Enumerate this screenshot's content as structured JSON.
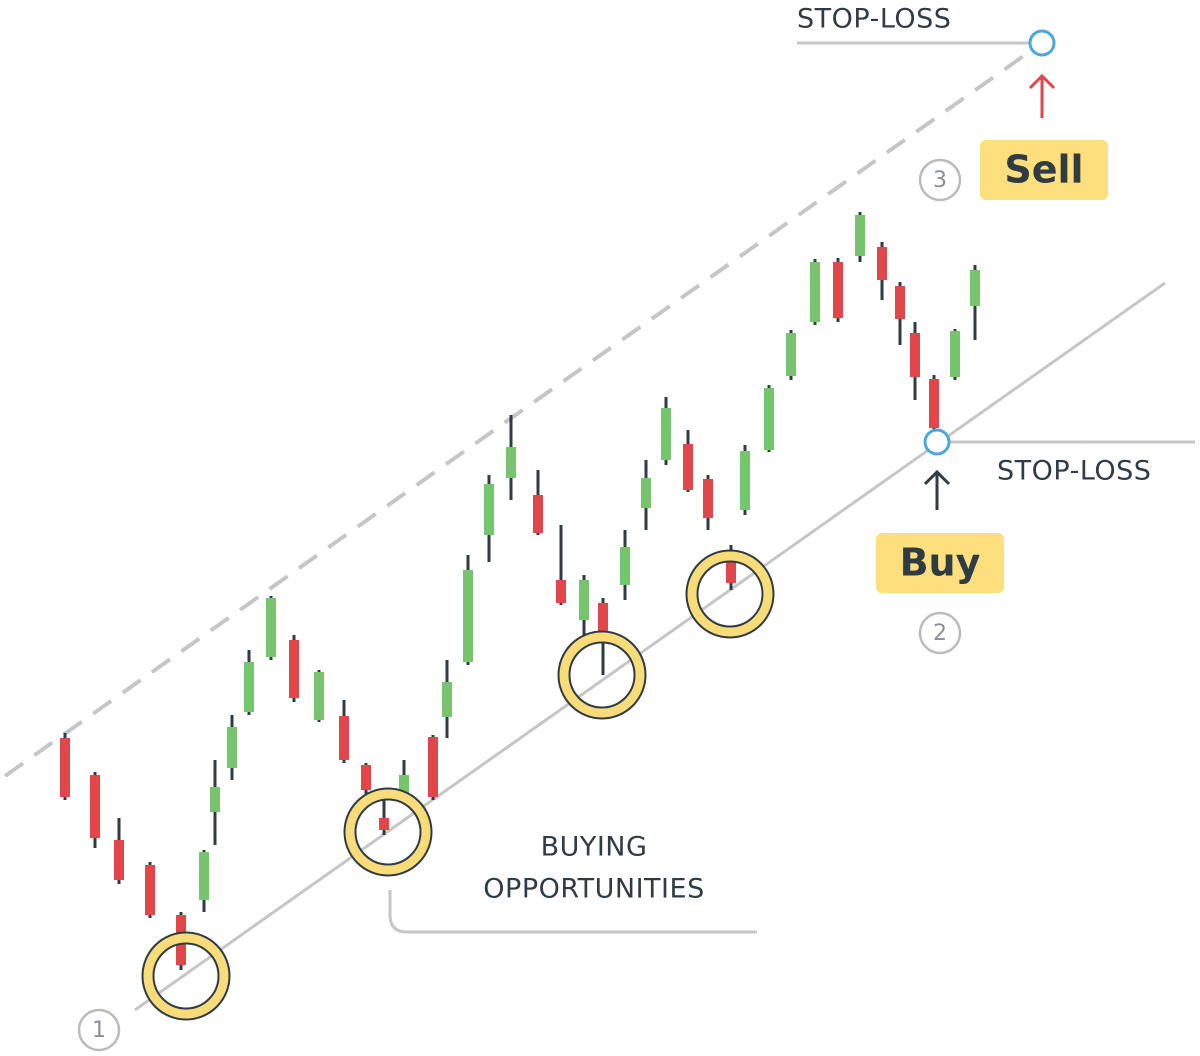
{
  "labels": {
    "stop_loss_top": "STOP-LOSS",
    "stop_loss_bottom": "STOP-LOSS",
    "sell": "Sell",
    "buy": "Buy",
    "buying_opportunities": [
      "BUYING",
      "OPPORTUNITIES"
    ]
  },
  "steps": [
    "1",
    "2",
    "3"
  ]
}
